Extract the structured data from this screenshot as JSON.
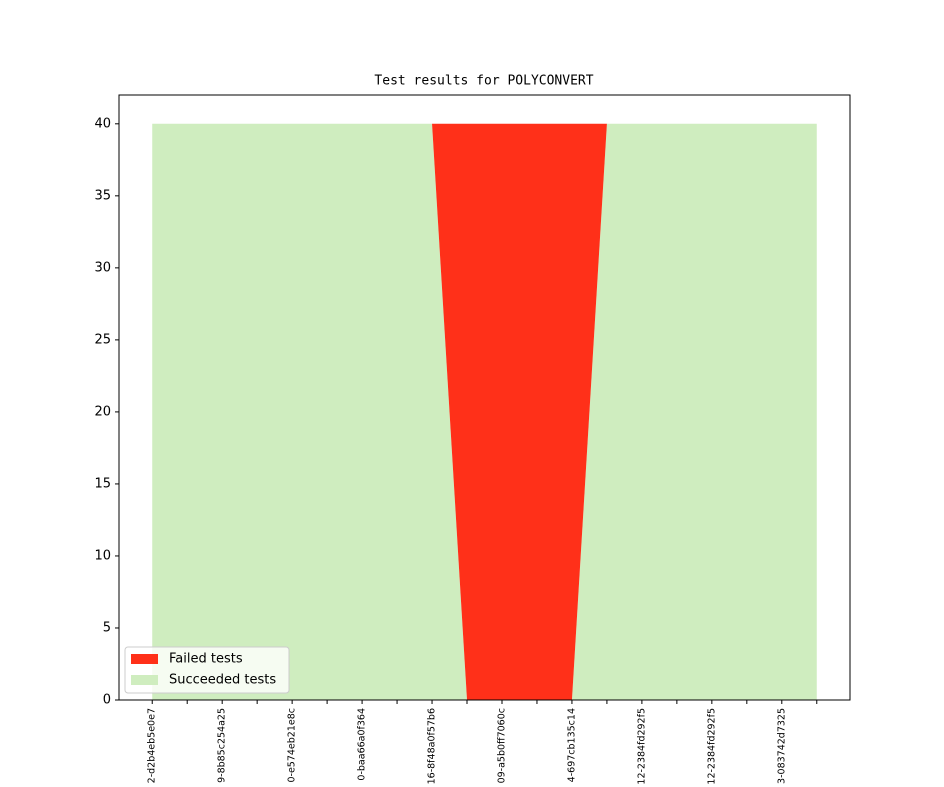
{
  "chart_data": {
    "type": "area",
    "stacked": true,
    "title": "Test results for POLYCONVERT",
    "categories": [
      "2-d2b4eb5e0e7",
      null,
      "9-8b85c254a25",
      null,
      "0-e574eb21e8c",
      null,
      "0-baa66a0f364",
      null,
      "16-8f48a0f57b6",
      null,
      "09-a5b0ff7060c",
      null,
      "4-697cb135c14",
      null,
      "12-2384fd292f5",
      null,
      "12-2384fd292f5",
      null,
      "3-083742d7325",
      null
    ],
    "series": [
      {
        "name": "Failed tests",
        "color": "#ff3019",
        "values": [
          0,
          0,
          0,
          0,
          0,
          0,
          0,
          0,
          0,
          40,
          40,
          40,
          40,
          0,
          0,
          0,
          0,
          0,
          0,
          0
        ]
      },
      {
        "name": "Succeeded tests",
        "color": "#cfedbf",
        "values": [
          40,
          40,
          40,
          40,
          40,
          40,
          40,
          40,
          40,
          0,
          0,
          0,
          0,
          40,
          40,
          40,
          40,
          40,
          40,
          40
        ]
      }
    ],
    "ylim": [
      0,
      42
    ],
    "yticks": [
      0,
      5,
      10,
      15,
      20,
      25,
      30,
      35,
      40
    ],
    "legend": "lower left"
  }
}
